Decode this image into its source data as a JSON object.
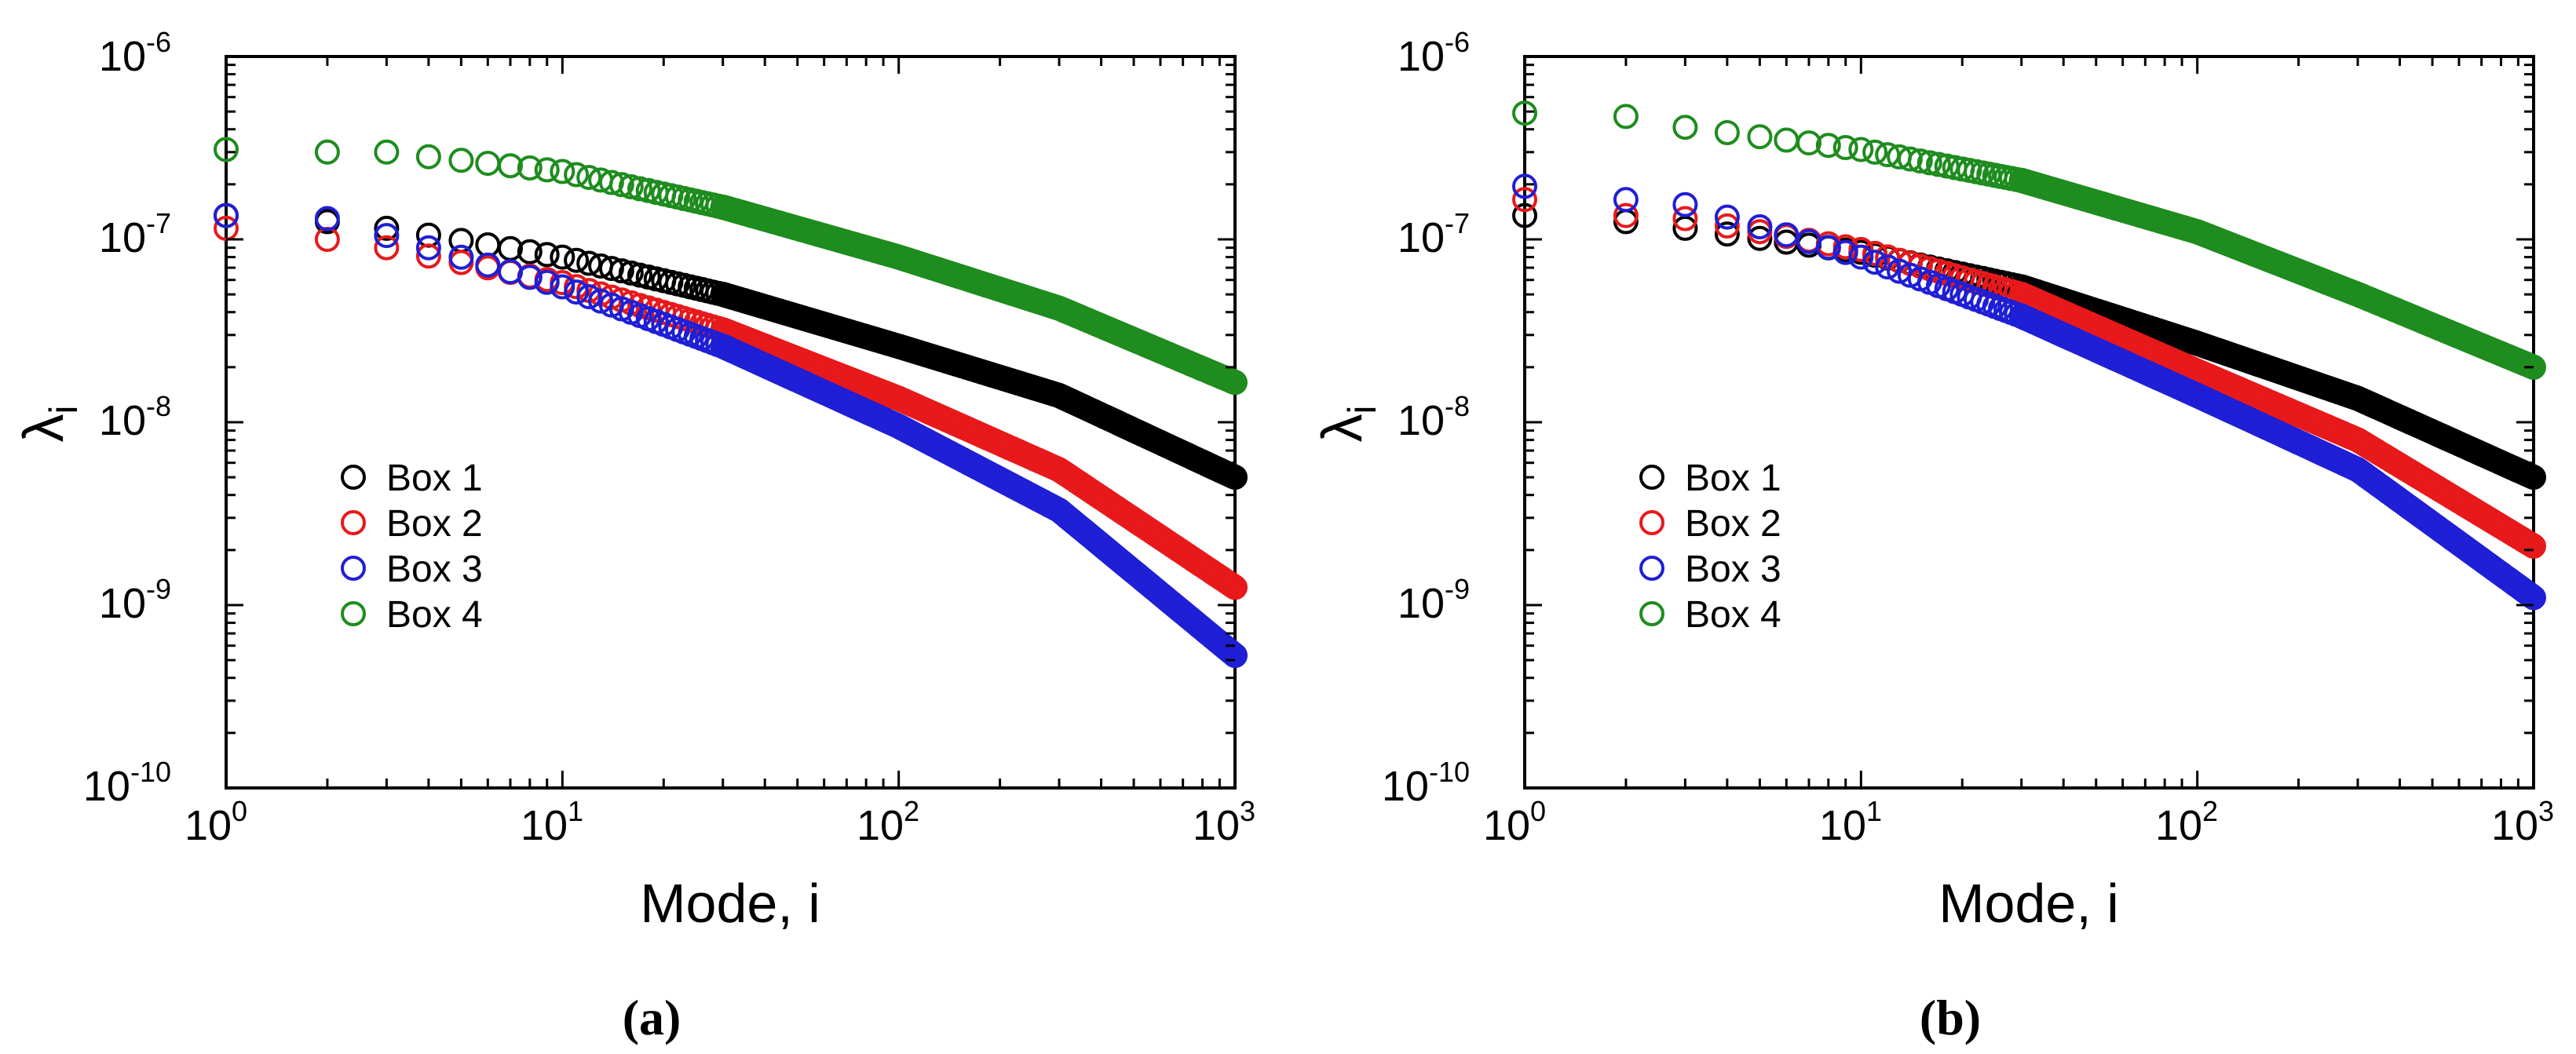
{
  "figure": {
    "captions": [
      "(a)",
      "(b)"
    ]
  },
  "colors": {
    "box1": "#000000",
    "box2": "#e8191b",
    "box3": "#1f1fd6",
    "box4": "#1e8c1e"
  },
  "chart_data": [
    {
      "type": "scatter",
      "panel": "a",
      "title": "",
      "xlabel": "Mode, i",
      "ylabel": "λ",
      "ylabel_subscript": "i",
      "xscale": "log",
      "yscale": "log",
      "xlim": [
        1,
        1000
      ],
      "ylim": [
        1e-10,
        1e-06
      ],
      "x_ticks": [
        {
          "base": "10",
          "exp": "0"
        },
        {
          "base": "10",
          "exp": "1"
        },
        {
          "base": "10",
          "exp": "2"
        },
        {
          "base": "10",
          "exp": "3"
        }
      ],
      "y_ticks": [
        {
          "base": "10",
          "exp": "-10"
        },
        {
          "base": "10",
          "exp": "-9"
        },
        {
          "base": "10",
          "exp": "-8"
        },
        {
          "base": "10",
          "exp": "-7"
        },
        {
          "base": "10",
          "exp": "-6"
        }
      ],
      "grid": false,
      "legend_position": "center-left",
      "series": [
        {
          "name": "Box 1",
          "color_key": "box1",
          "x": [
            1,
            2,
            3,
            10,
            30,
            100,
            300,
            1000
          ],
          "y": [
            1.35e-07,
            1.25e-07,
            1.15e-07,
            8e-08,
            5e-08,
            2.6e-08,
            1.4e-08,
            5e-09
          ]
        },
        {
          "name": "Box 2",
          "color_key": "box2",
          "x": [
            1,
            2,
            3,
            10,
            30,
            100,
            300,
            1000
          ],
          "y": [
            1.15e-07,
            1e-07,
            9e-08,
            5.8e-08,
            3.2e-08,
            1.35e-08,
            5.5e-09,
            1.25e-09
          ]
        },
        {
          "name": "Box 3",
          "color_key": "box3",
          "x": [
            1,
            2,
            3,
            10,
            30,
            100,
            300,
            1000
          ],
          "y": [
            1.35e-07,
            1.3e-07,
            1.05e-07,
            5.5e-08,
            2.6e-08,
            9.5e-09,
            3.3e-09,
            5.3e-10
          ]
        },
        {
          "name": "Box 4",
          "color_key": "box4",
          "x": [
            1,
            2,
            3,
            10,
            30,
            100,
            300,
            1000
          ],
          "y": [
            3.1e-07,
            3e-07,
            3e-07,
            2.35e-07,
            1.5e-07,
            8e-08,
            4.2e-08,
            1.65e-08
          ]
        }
      ]
    },
    {
      "type": "scatter",
      "panel": "b",
      "title": "",
      "xlabel": "Mode, i",
      "ylabel": "λ",
      "ylabel_subscript": "i",
      "xscale": "log",
      "yscale": "log",
      "xlim": [
        1,
        1000
      ],
      "ylim": [
        1e-10,
        1e-06
      ],
      "x_ticks": [
        {
          "base": "10",
          "exp": "0"
        },
        {
          "base": "10",
          "exp": "1"
        },
        {
          "base": "10",
          "exp": "2"
        },
        {
          "base": "10",
          "exp": "3"
        }
      ],
      "y_ticks": [
        {
          "base": "10",
          "exp": "-10"
        },
        {
          "base": "10",
          "exp": "-9"
        },
        {
          "base": "10",
          "exp": "-8"
        },
        {
          "base": "10",
          "exp": "-7"
        },
        {
          "base": "10",
          "exp": "-6"
        }
      ],
      "grid": false,
      "legend_position": "center-left",
      "series": [
        {
          "name": "Box 1",
          "color_key": "box1",
          "x": [
            1,
            2,
            3,
            10,
            30,
            100,
            300,
            1000
          ],
          "y": [
            1.35e-07,
            1.25e-07,
            1.15e-07,
            8.5e-08,
            5.5e-08,
            2.7e-08,
            1.35e-08,
            5e-09
          ]
        },
        {
          "name": "Box 2",
          "color_key": "box2",
          "x": [
            1,
            2,
            3,
            10,
            30,
            100,
            300,
            1000
          ],
          "y": [
            1.65e-07,
            1.35e-07,
            1.3e-07,
            8.8e-08,
            5e-08,
            1.9e-08,
            8e-09,
            2.1e-09
          ]
        },
        {
          "name": "Box 3",
          "color_key": "box3",
          "x": [
            1,
            2,
            3,
            10,
            30,
            100,
            300,
            1000
          ],
          "y": [
            1.95e-07,
            1.65e-07,
            1.55e-07,
            8e-08,
            3.8e-08,
            1.4e-08,
            5.5e-09,
            1.1e-09
          ]
        },
        {
          "name": "Box 4",
          "color_key": "box4",
          "x": [
            1,
            2,
            3,
            10,
            30,
            100,
            300,
            1000
          ],
          "y": [
            4.9e-07,
            4.7e-07,
            4.1e-07,
            3.1e-07,
            2.1e-07,
            1.1e-07,
            5e-08,
            2e-08
          ]
        }
      ]
    }
  ]
}
